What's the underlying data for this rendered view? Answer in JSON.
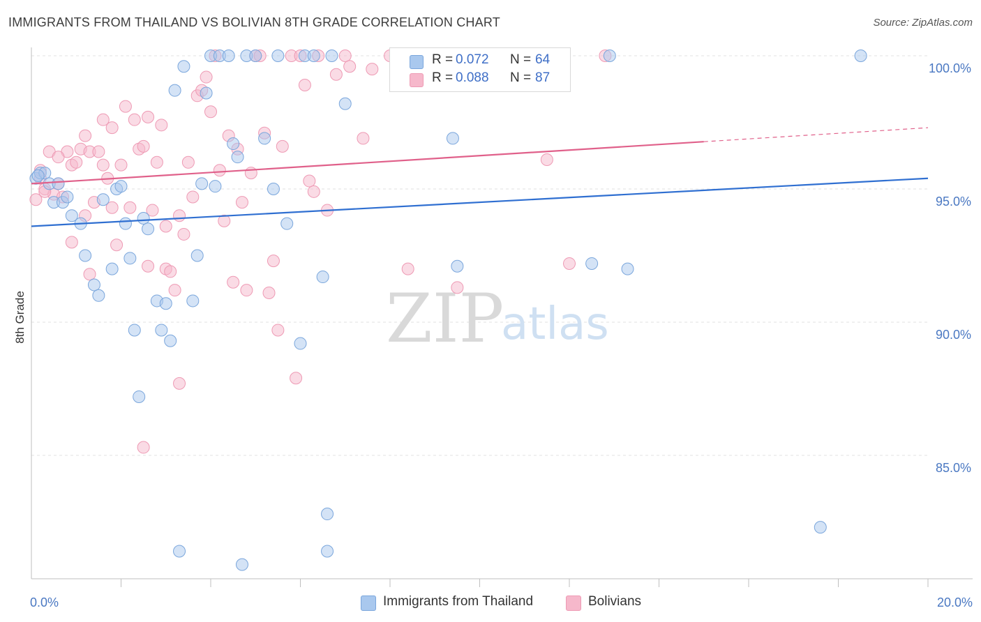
{
  "header": {
    "title": "IMMIGRANTS FROM THAILAND VS BOLIVIAN 8TH GRADE CORRELATION CHART",
    "source": "Source: ZipAtlas.com"
  },
  "legend": {
    "rows": [
      {
        "r_label": "R =",
        "r_value": "0.072",
        "n_label": "N =",
        "n_value": "64"
      },
      {
        "r_label": "R =",
        "r_value": "0.088",
        "n_label": "N =",
        "n_value": "87"
      }
    ]
  },
  "bottom_legend": {
    "items": [
      {
        "label": "Immigrants from Thailand"
      },
      {
        "label": "Bolivians"
      }
    ]
  },
  "watermark": {
    "zip": "ZIP",
    "atlas": "atlas"
  },
  "colors": {
    "thailand_fill": "#a9c8ee",
    "thailand_stroke": "#7aa6dc",
    "thailand_line": "#2f6fd1",
    "bolivian_fill": "#f6b8cb",
    "bolivian_stroke": "#ee9ab4",
    "bolivian_line": "#e0608a",
    "tick_text": "#4a78c2",
    "grid": "#e0e0e0"
  },
  "chart_data": {
    "type": "scatter",
    "title": "IMMIGRANTS FROM THAILAND VS BOLIVIAN 8TH GRADE CORRELATION CHART",
    "xlabel": "",
    "ylabel": "8th Grade",
    "xlim": [
      0,
      20
    ],
    "ylim": [
      80.5,
      100.5
    ],
    "x_tick_labels": [
      "0.0%",
      "20.0%"
    ],
    "y_ticks": [
      85,
      90,
      95,
      100
    ],
    "y_tick_labels": [
      "85.0%",
      "90.0%",
      "95.0%",
      "100.0%"
    ],
    "grid": true,
    "legend_position": "top-center",
    "series": [
      {
        "name": "Immigrants from Thailand",
        "r": 0.072,
        "n": 64,
        "trend": {
          "x": [
            0,
            20
          ],
          "y": [
            93.6,
            95.4
          ],
          "dashed_from": null
        },
        "points": [
          [
            0.1,
            95.4
          ],
          [
            0.2,
            95.6
          ],
          [
            0.3,
            95.6
          ],
          [
            0.4,
            95.2
          ],
          [
            0.5,
            94.5
          ],
          [
            0.7,
            94.5
          ],
          [
            0.8,
            94.7
          ],
          [
            0.9,
            94.0
          ],
          [
            1.1,
            93.7
          ],
          [
            1.2,
            92.5
          ],
          [
            1.4,
            91.4
          ],
          [
            1.5,
            91.0
          ],
          [
            1.6,
            94.6
          ],
          [
            1.8,
            92.0
          ],
          [
            1.9,
            95.0
          ],
          [
            2.0,
            95.1
          ],
          [
            2.1,
            93.7
          ],
          [
            2.2,
            92.4
          ],
          [
            2.3,
            89.7
          ],
          [
            2.4,
            87.2
          ],
          [
            2.5,
            93.9
          ],
          [
            2.6,
            93.5
          ],
          [
            2.8,
            90.8
          ],
          [
            2.9,
            89.7
          ],
          [
            3.0,
            90.7
          ],
          [
            3.1,
            89.3
          ],
          [
            3.2,
            98.7
          ],
          [
            3.4,
            99.6
          ],
          [
            3.6,
            90.8
          ],
          [
            3.7,
            92.5
          ],
          [
            3.8,
            95.2
          ],
          [
            3.9,
            98.6
          ],
          [
            4.0,
            100.0
          ],
          [
            4.1,
            95.1
          ],
          [
            4.2,
            100.0
          ],
          [
            4.4,
            100.0
          ],
          [
            4.5,
            96.7
          ],
          [
            4.6,
            96.2
          ],
          [
            4.8,
            100.0
          ],
          [
            5.0,
            100.0
          ],
          [
            5.2,
            96.9
          ],
          [
            5.4,
            95.0
          ],
          [
            5.5,
            100.0
          ],
          [
            5.7,
            93.7
          ],
          [
            6.0,
            89.2
          ],
          [
            6.1,
            100.0
          ],
          [
            6.3,
            100.0
          ],
          [
            6.5,
            91.7
          ],
          [
            6.6,
            82.8
          ],
          [
            6.7,
            100.0
          ],
          [
            7.0,
            98.2
          ],
          [
            9.4,
            96.9
          ],
          [
            9.5,
            92.1
          ],
          [
            11.2,
            100.0
          ],
          [
            12.5,
            92.2
          ],
          [
            12.9,
            100.0
          ],
          [
            13.3,
            92.0
          ],
          [
            17.6,
            82.3
          ],
          [
            18.5,
            100.0
          ],
          [
            3.3,
            81.4
          ],
          [
            4.7,
            80.9
          ],
          [
            6.6,
            81.4
          ],
          [
            0.15,
            95.5
          ],
          [
            0.6,
            95.2
          ]
        ]
      },
      {
        "name": "Bolivians",
        "r": 0.088,
        "n": 87,
        "trend": {
          "x": [
            0,
            20
          ],
          "y": [
            95.2,
            97.3
          ],
          "dashed_from": 15.0
        },
        "points": [
          [
            0.1,
            94.6
          ],
          [
            0.2,
            95.4
          ],
          [
            0.3,
            95.0
          ],
          [
            0.4,
            96.4
          ],
          [
            0.5,
            94.8
          ],
          [
            0.6,
            95.2
          ],
          [
            0.7,
            94.7
          ],
          [
            0.8,
            96.4
          ],
          [
            0.9,
            95.9
          ],
          [
            1.0,
            96.0
          ],
          [
            1.1,
            96.5
          ],
          [
            1.2,
            94.0
          ],
          [
            1.2,
            97.0
          ],
          [
            1.3,
            96.4
          ],
          [
            1.4,
            94.5
          ],
          [
            1.5,
            96.4
          ],
          [
            1.6,
            97.6
          ],
          [
            1.7,
            95.4
          ],
          [
            1.8,
            97.3
          ],
          [
            1.9,
            92.9
          ],
          [
            2.0,
            95.9
          ],
          [
            2.1,
            98.1
          ],
          [
            2.2,
            94.3
          ],
          [
            2.3,
            97.6
          ],
          [
            2.4,
            96.5
          ],
          [
            2.5,
            96.6
          ],
          [
            2.6,
            97.7
          ],
          [
            2.7,
            94.2
          ],
          [
            2.8,
            96.0
          ],
          [
            2.9,
            97.4
          ],
          [
            3.0,
            92.0
          ],
          [
            3.1,
            91.9
          ],
          [
            3.2,
            91.2
          ],
          [
            3.3,
            94.0
          ],
          [
            3.4,
            93.3
          ],
          [
            3.5,
            96.0
          ],
          [
            3.6,
            94.7
          ],
          [
            3.7,
            98.5
          ],
          [
            3.8,
            98.7
          ],
          [
            3.9,
            99.2
          ],
          [
            4.0,
            97.9
          ],
          [
            4.1,
            100.0
          ],
          [
            4.2,
            95.7
          ],
          [
            4.3,
            93.8
          ],
          [
            4.4,
            97.0
          ],
          [
            4.5,
            91.5
          ],
          [
            4.6,
            96.5
          ],
          [
            4.7,
            94.5
          ],
          [
            4.8,
            91.2
          ],
          [
            5.0,
            100.0
          ],
          [
            5.1,
            100.0
          ],
          [
            5.2,
            97.1
          ],
          [
            5.3,
            91.1
          ],
          [
            5.4,
            92.3
          ],
          [
            5.5,
            89.7
          ],
          [
            5.6,
            96.6
          ],
          [
            5.8,
            100.0
          ],
          [
            5.9,
            87.9
          ],
          [
            6.0,
            100.0
          ],
          [
            6.1,
            98.9
          ],
          [
            6.2,
            95.3
          ],
          [
            6.3,
            94.9
          ],
          [
            6.4,
            100.0
          ],
          [
            6.6,
            94.2
          ],
          [
            6.8,
            99.3
          ],
          [
            7.0,
            100.0
          ],
          [
            7.1,
            99.6
          ],
          [
            7.4,
            96.9
          ],
          [
            7.6,
            99.5
          ],
          [
            8.0,
            100.0
          ],
          [
            8.4,
            92.0
          ],
          [
            9.5,
            91.3
          ],
          [
            11.5,
            96.1
          ],
          [
            12.0,
            92.2
          ],
          [
            12.8,
            100.0
          ],
          [
            2.5,
            85.3
          ],
          [
            3.3,
            87.7
          ],
          [
            1.3,
            91.8
          ],
          [
            2.6,
            92.1
          ],
          [
            0.9,
            93.0
          ],
          [
            3.0,
            93.6
          ],
          [
            0.6,
            96.2
          ],
          [
            1.8,
            94.3
          ],
          [
            0.3,
            94.9
          ],
          [
            4.9,
            95.6
          ],
          [
            0.2,
            95.7
          ],
          [
            1.6,
            95.9
          ]
        ]
      }
    ]
  }
}
